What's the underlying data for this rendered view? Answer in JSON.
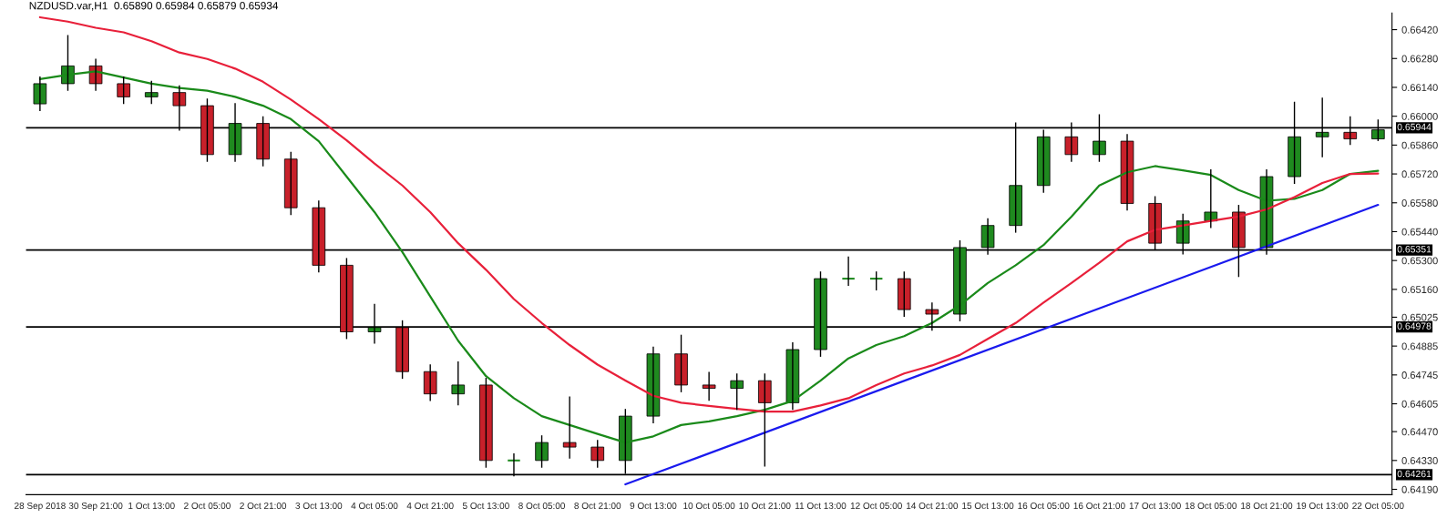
{
  "chart_data": {
    "type": "candlestick",
    "title": "NZDUSD.var,H1  0.65890 0.65984 0.65879 0.65934",
    "categories": [
      "28 Sep 2018",
      null,
      "30 Sep 21:00",
      null,
      "1 Oct 13:00",
      null,
      "2 Oct 05:00",
      null,
      "2 Oct 21:00",
      null,
      "3 Oct 13:00",
      null,
      "4 Oct 05:00",
      null,
      "4 Oct 21:00",
      null,
      "5 Oct 13:00",
      null,
      "8 Oct 05:00",
      null,
      "8 Oct 21:00",
      null,
      "9 Oct 13:00",
      null,
      "10 Oct 05:00",
      null,
      "10 Oct 21:00",
      null,
      "11 Oct 13:00",
      null,
      "12 Oct 05:00",
      null,
      "14 Oct 21:00",
      null,
      "15 Oct 13:00",
      null,
      "16 Oct 05:00",
      null,
      "16 Oct 21:00",
      null,
      "17 Oct 13:00",
      null,
      "18 Oct 05:00",
      null,
      "18 Oct 21:00",
      null,
      "19 Oct 13:00",
      null,
      "22 Oct 05:00"
    ],
    "ohlc": [
      [
        0.6606,
        0.66193,
        0.66025,
        0.66158
      ],
      [
        0.66158,
        0.66394,
        0.66123,
        0.66244
      ],
      [
        0.66244,
        0.66279,
        0.66123,
        0.66158
      ],
      [
        0.66158,
        0.66193,
        0.66059,
        0.66094
      ],
      [
        0.66094,
        0.66172,
        0.66059,
        0.66115
      ],
      [
        0.66115,
        0.6615,
        0.6593,
        0.66051
      ],
      [
        0.66051,
        0.66086,
        0.65779,
        0.65814
      ],
      [
        0.65814,
        0.66064,
        0.65779,
        0.65965
      ],
      [
        0.65965,
        0.66,
        0.65757,
        0.65792
      ],
      [
        0.65792,
        0.65827,
        0.65521,
        0.65556
      ],
      [
        0.65556,
        0.65591,
        0.65242,
        0.65277
      ],
      [
        0.65277,
        0.65312,
        0.64919,
        0.64954
      ],
      [
        0.64954,
        0.6509,
        0.64897,
        0.64975
      ],
      [
        0.64975,
        0.6501,
        0.64726,
        0.64761
      ],
      [
        0.64761,
        0.64796,
        0.64618,
        0.64653
      ],
      [
        0.64653,
        0.6481,
        0.64597,
        0.64696
      ],
      [
        0.64696,
        0.64731,
        0.64295,
        0.6433
      ],
      [
        0.6433,
        0.64365,
        0.64253,
        0.6433
      ],
      [
        0.6433,
        0.64452,
        0.64295,
        0.64417
      ],
      [
        0.64417,
        0.6464,
        0.64339,
        0.64395
      ],
      [
        0.64395,
        0.6443,
        0.64295,
        0.6433
      ],
      [
        0.6433,
        0.6458,
        0.64265,
        0.64545
      ],
      [
        0.64545,
        0.64882,
        0.6451,
        0.64847
      ],
      [
        0.64847,
        0.6494,
        0.64661,
        0.64696
      ],
      [
        0.64696,
        0.6476,
        0.6462,
        0.6468
      ],
      [
        0.6468,
        0.64752,
        0.64575,
        0.64717
      ],
      [
        0.64717,
        0.64752,
        0.643,
        0.6461
      ],
      [
        0.6461,
        0.64903,
        0.64575,
        0.64868
      ],
      [
        0.64868,
        0.65247,
        0.64833,
        0.65212
      ],
      [
        0.65212,
        0.6532,
        0.65177,
        0.65212
      ],
      [
        0.65212,
        0.65247,
        0.65155,
        0.65212
      ],
      [
        0.65212,
        0.65247,
        0.65027,
        0.65062
      ],
      [
        0.65062,
        0.65097,
        0.6496,
        0.6504
      ],
      [
        0.6504,
        0.65398,
        0.65005,
        0.65363
      ],
      [
        0.65363,
        0.65505,
        0.65328,
        0.6547
      ],
      [
        0.6547,
        0.6597,
        0.65435,
        0.65664
      ],
      [
        0.65664,
        0.65935,
        0.65629,
        0.659
      ],
      [
        0.659,
        0.6597,
        0.65779,
        0.65814
      ],
      [
        0.65814,
        0.6601,
        0.65779,
        0.65879
      ],
      [
        0.65879,
        0.65914,
        0.65542,
        0.65577
      ],
      [
        0.65577,
        0.65612,
        0.65349,
        0.65384
      ],
      [
        0.65384,
        0.65527,
        0.6533,
        0.65492
      ],
      [
        0.65492,
        0.65742,
        0.65457,
        0.65535
      ],
      [
        0.65535,
        0.6557,
        0.6522,
        0.65363
      ],
      [
        0.65363,
        0.65742,
        0.65328,
        0.65707
      ],
      [
        0.65707,
        0.6607,
        0.65672,
        0.659
      ],
      [
        0.659,
        0.6609,
        0.65801,
        0.65922
      ],
      [
        0.65922,
        0.66,
        0.6586,
        0.6589
      ],
      [
        0.6589,
        0.65984,
        0.65879,
        0.65934
      ]
    ],
    "colors": [
      "#1f8a1f",
      "#1f8a1f",
      "#c8202a",
      "#c8202a",
      "#1f8a1f",
      "#c8202a",
      "#c8202a",
      "#1f8a1f",
      "#c8202a",
      "#c8202a",
      "#c8202a",
      "#c8202a",
      "#1f8a1f",
      "#c8202a",
      "#c8202a",
      "#1f8a1f",
      "#c8202a",
      "#1f8a1f",
      "#1f8a1f",
      "#c8202a",
      "#c8202a",
      "#1f8a1f",
      "#1f8a1f",
      "#c8202a",
      "#c8202a",
      "#1f8a1f",
      "#c8202a",
      "#1f8a1f",
      "#1f8a1f",
      "#1f8a1f",
      "#1f8a1f",
      "#c8202a",
      "#c8202a",
      "#1f8a1f",
      "#1f8a1f",
      "#1f8a1f",
      "#1f8a1f",
      "#c8202a",
      "#1f8a1f",
      "#c8202a",
      "#c8202a",
      "#1f8a1f",
      "#1f8a1f",
      "#c8202a",
      "#1f8a1f",
      "#1f8a1f",
      "#1f8a1f",
      "#c8202a",
      "#1f8a1f"
    ],
    "series": [
      {
        "type": "line",
        "color": "#1a8a1a",
        "values": [
          0.6618,
          0.66201,
          0.66218,
          0.66188,
          0.66158,
          0.66137,
          0.66124,
          0.66094,
          0.66051,
          0.65986,
          0.65879,
          0.65707,
          0.65535,
          0.65341,
          0.65126,
          0.64911,
          0.64739,
          0.64632,
          0.64545,
          0.64502,
          0.64459,
          0.64417,
          0.64447,
          0.64502,
          0.6452,
          0.64545,
          0.64576,
          0.64619,
          0.64717,
          0.64825,
          0.6489,
          0.64933,
          0.64997,
          0.65083,
          0.65191,
          0.65277,
          0.65375,
          0.65513,
          0.65664,
          0.65728,
          0.65758,
          0.65737,
          0.65715,
          0.65642,
          0.6559,
          0.65599,
          0.65642,
          0.6572,
          0.65735
        ]
      },
      {
        "type": "line",
        "color": "#e8203a",
        "values": [
          0.6648,
          0.66459,
          0.66429,
          0.66407,
          0.66364,
          0.66309,
          0.66278,
          0.66231,
          0.66167,
          0.66081,
          0.65986,
          0.65883,
          0.65771,
          0.65664,
          0.65535,
          0.65384,
          0.65255,
          0.65113,
          0.64997,
          0.6489,
          0.64795,
          0.64718,
          0.64644,
          0.6461,
          0.64595,
          0.6458,
          0.64567,
          0.64567,
          0.64597,
          0.64632,
          0.64696,
          0.64752,
          0.64791,
          0.64842,
          0.6492,
          0.64997,
          0.65096,
          0.65191,
          0.65289,
          0.65393,
          0.65449,
          0.6547,
          0.65492,
          0.65513,
          0.65548,
          0.65608,
          0.65676,
          0.6572,
          0.65722
        ]
      },
      {
        "type": "line",
        "color": "#1a1aee",
        "values": [
          null,
          null,
          null,
          null,
          null,
          null,
          null,
          null,
          null,
          null,
          null,
          null,
          null,
          null,
          null,
          null,
          null,
          null,
          null,
          null,
          null,
          0.64214,
          null,
          null,
          null,
          null,
          null,
          null,
          null,
          null,
          null,
          null,
          null,
          null,
          null,
          null,
          null,
          null,
          null,
          null,
          null,
          null,
          null,
          null,
          null,
          null,
          null,
          null,
          0.6557
        ]
      }
    ],
    "ylim": [
      0.64164,
      0.66501
    ],
    "yticks": [
      {
        "value": 0.6642,
        "label": "0.66420"
      },
      {
        "value": 0.6628,
        "label": "0.66280"
      },
      {
        "value": 0.6614,
        "label": "0.66140"
      },
      {
        "value": 0.66,
        "label": "0.66000"
      },
      {
        "value": 0.6586,
        "label": "0.65860"
      },
      {
        "value": 0.6572,
        "label": "0.65720"
      },
      {
        "value": 0.6558,
        "label": "0.65580"
      },
      {
        "value": 0.6544,
        "label": "0.65440"
      },
      {
        "value": 0.653,
        "label": "0.65300"
      },
      {
        "value": 0.6516,
        "label": "0.65160"
      },
      {
        "value": 0.65025,
        "label": "0.65025"
      },
      {
        "value": 0.64885,
        "label": "0.64885"
      },
      {
        "value": 0.64745,
        "label": "0.64745"
      },
      {
        "value": 0.64605,
        "label": "0.64605"
      },
      {
        "value": 0.6447,
        "label": "0.64470"
      },
      {
        "value": 0.6433,
        "label": "0.64330"
      },
      {
        "value": 0.6419,
        "label": "0.64190"
      }
    ],
    "ref_lines": [
      {
        "axis": "y",
        "value": 0.65944,
        "label": "0.65944",
        "color": "#000000"
      },
      {
        "axis": "y",
        "value": 0.65351,
        "label": "0.65351",
        "color": "#000000"
      },
      {
        "axis": "y",
        "value": 0.64978,
        "label": "0.64978",
        "color": "#000000"
      },
      {
        "axis": "y",
        "value": 0.64261,
        "label": "0.64261",
        "color": "#000000"
      }
    ],
    "grid": false
  }
}
